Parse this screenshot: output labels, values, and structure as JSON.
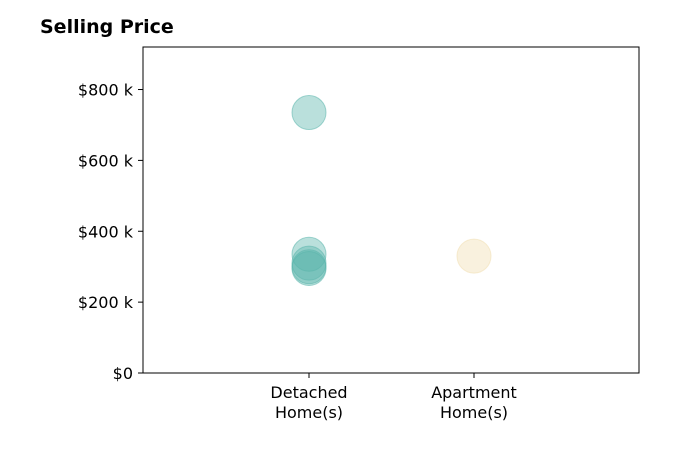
{
  "chart_data": {
    "type": "scatter",
    "title": "Selling Price",
    "xlabel": "",
    "ylabel": "",
    "categories": [
      [
        "Detached",
        "Home(s)"
      ],
      [
        "Apartment",
        "Home(s)"
      ]
    ],
    "y_ticks": [
      0,
      200000,
      400000,
      600000,
      800000
    ],
    "y_tick_labels": [
      "$0",
      "$200 k",
      "$400 k",
      "$600 k",
      "$800 k"
    ],
    "ylim": [
      0,
      920000
    ],
    "grid": false,
    "legend": "none",
    "series": [
      {
        "category_index": 0,
        "color": "#5ab4ac",
        "values": [
          735000,
          335000,
          310000,
          300000,
          295000
        ]
      },
      {
        "category_index": 1,
        "color": "#f1deb0",
        "values": [
          330000
        ]
      }
    ]
  }
}
